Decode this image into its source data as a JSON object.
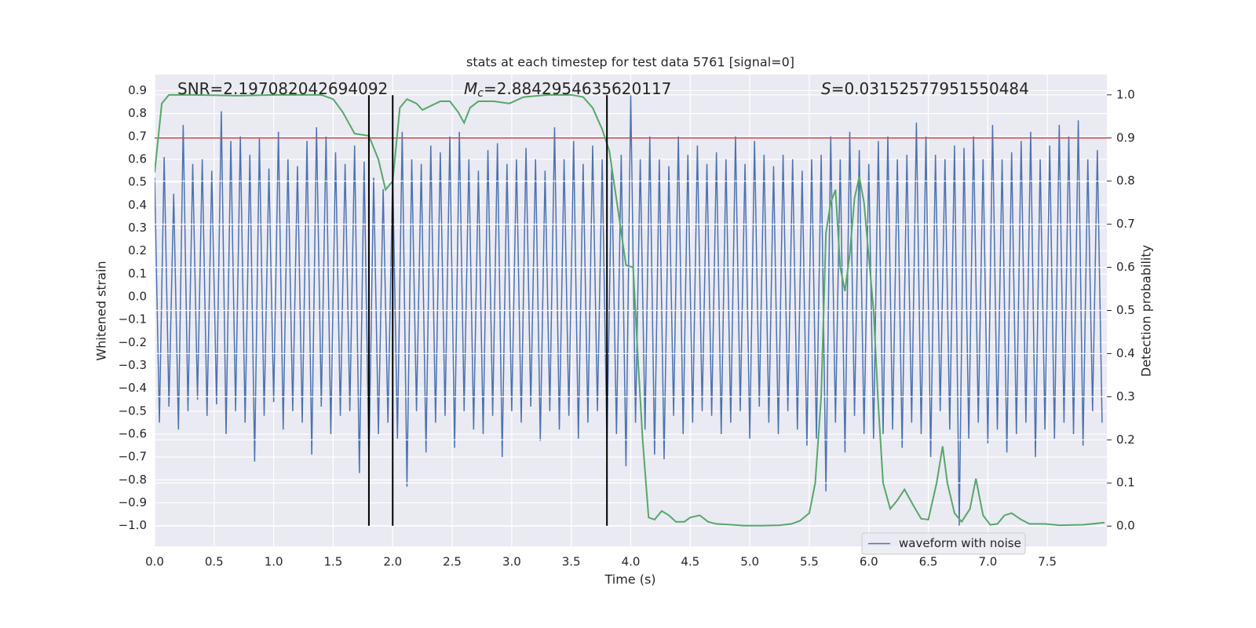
{
  "chart_data": {
    "type": "line",
    "title": "stats at each timestep for test data 5761 [signal=0]",
    "xlabel": "Time (s)",
    "ylabel": "Whitened strain",
    "y2label": "Detection probability",
    "xlim": [
      0,
      8
    ],
    "ylim": [
      -1.09,
      0.97
    ],
    "y2lim": [
      -0.047,
      1.047
    ],
    "xticks": [
      {
        "value": 0,
        "label": "0.0"
      },
      0.5,
      {
        "value": 1,
        "label": "1.0"
      },
      1.5,
      {
        "value": 2,
        "label": "2.0"
      },
      2.5,
      {
        "value": 3,
        "label": "3.0"
      },
      3.5,
      {
        "value": 4,
        "label": "4.0"
      },
      4.5,
      {
        "value": 5,
        "label": "5.0"
      },
      5.5,
      {
        "value": 6,
        "label": "6.0"
      },
      6.5,
      {
        "value": 7,
        "label": "7.0"
      },
      7.5
    ],
    "yticks": [
      0.9,
      0.8,
      0.7,
      0.6,
      0.5,
      0.4,
      0.3,
      0.2,
      0.1,
      {
        "value": 0,
        "label": "0.0"
      },
      {
        "value": -0.1,
        "label": "−0.1"
      },
      {
        "value": -0.2,
        "label": "−0.2"
      },
      {
        "value": -0.3,
        "label": "−0.3"
      },
      {
        "value": -0.4,
        "label": "−0.4"
      },
      {
        "value": -0.5,
        "label": "−0.5"
      },
      {
        "value": -0.6,
        "label": "−0.6"
      },
      {
        "value": -0.7,
        "label": "−0.7"
      },
      {
        "value": -0.8,
        "label": "−0.8"
      },
      {
        "value": -0.9,
        "label": "−0.9"
      },
      {
        "value": -1,
        "label": "−1.0"
      }
    ],
    "y2ticks": [
      {
        "value": 0,
        "label": "0.0"
      },
      0.1,
      0.2,
      0.3,
      0.4,
      0.5,
      0.6,
      0.7,
      0.8,
      0.9,
      {
        "value": 1,
        "label": "1.0"
      }
    ],
    "grid": true,
    "legend": "lower right",
    "annotations": [
      {
        "text": "SNR=2.197082042694092"
      },
      {
        "symbol": "M",
        "subscript": "c",
        "text": "=2.8842954635620117"
      },
      {
        "symbol": "S",
        "text": "=0.03152577951550484"
      }
    ],
    "hlines": [
      {
        "value": 0.9,
        "axis": "y2",
        "color": "#c44e52"
      }
    ],
    "vlines": {
      "values": [
        1.8,
        2.0,
        3.8
      ],
      "ymin": -1.0,
      "ymax": 0.88,
      "color": "#000000"
    },
    "series": [
      {
        "name": "waveform with noise",
        "color": "#4c72b0",
        "x": [
          0,
          0.04,
          0.08,
          0.12,
          0.16,
          0.2,
          0.24,
          0.28,
          0.32,
          0.36,
          0.4,
          0.44,
          0.48,
          0.52,
          0.56,
          0.6,
          0.64,
          0.68,
          0.72,
          0.76,
          0.8,
          0.84,
          0.88,
          0.92,
          0.96,
          1,
          1.04,
          1.08,
          1.12,
          1.16,
          1.2,
          1.24,
          1.28,
          1.32,
          1.36,
          1.4,
          1.44,
          1.48,
          1.52,
          1.56,
          1.6,
          1.64,
          1.68,
          1.72,
          1.76,
          1.8,
          1.84,
          1.88,
          1.92,
          1.96,
          2,
          2.04,
          2.08,
          2.12,
          2.16,
          2.2,
          2.24,
          2.28,
          2.32,
          2.36,
          2.4,
          2.44,
          2.48,
          2.52,
          2.56,
          2.6,
          2.64,
          2.68,
          2.72,
          2.76,
          2.8,
          2.84,
          2.88,
          2.92,
          2.96,
          3,
          3.04,
          3.08,
          3.12,
          3.16,
          3.2,
          3.24,
          3.28,
          3.32,
          3.36,
          3.4,
          3.44,
          3.48,
          3.52,
          3.56,
          3.6,
          3.64,
          3.68,
          3.72,
          3.76,
          3.8,
          3.84,
          3.88,
          3.92,
          3.96,
          4,
          4.04,
          4.08,
          4.12,
          4.16,
          4.2,
          4.24,
          4.28,
          4.32,
          4.36,
          4.4,
          4.44,
          4.48,
          4.52,
          4.56,
          4.6,
          4.64,
          4.68,
          4.72,
          4.76,
          4.8,
          4.84,
          4.88,
          4.92,
          4.96,
          5,
          5.04,
          5.08,
          5.12,
          5.16,
          5.2,
          5.24,
          5.28,
          5.32,
          5.36,
          5.4,
          5.44,
          5.48,
          5.52,
          5.56,
          5.6,
          5.64,
          5.68,
          5.72,
          5.76,
          5.8,
          5.84,
          5.88,
          5.92,
          5.96,
          6,
          6.04,
          6.08,
          6.12,
          6.16,
          6.2,
          6.24,
          6.28,
          6.32,
          6.36,
          6.4,
          6.44,
          6.48,
          6.52,
          6.56,
          6.6,
          6.64,
          6.68,
          6.72,
          6.76,
          6.8,
          6.84,
          6.88,
          6.92,
          6.96,
          7,
          7.04,
          7.08,
          7.12,
          7.16,
          7.2,
          7.24,
          7.28,
          7.32,
          7.36,
          7.4,
          7.44,
          7.48,
          7.52,
          7.56,
          7.6,
          7.64,
          7.68,
          7.72,
          7.76,
          7.8,
          7.84,
          7.88,
          7.92,
          7.96
        ],
        "values": [
          0.52,
          -0.55,
          0.61,
          -0.48,
          0.45,
          -0.58,
          0.75,
          -0.5,
          0.58,
          -0.45,
          0.6,
          -0.52,
          0.55,
          -0.47,
          0.81,
          -0.6,
          0.68,
          -0.5,
          0.7,
          -0.55,
          0.62,
          -0.72,
          0.69,
          -0.52,
          0.56,
          -0.46,
          0.72,
          -0.58,
          0.6,
          -0.5,
          0.57,
          -0.55,
          0.68,
          -0.69,
          0.74,
          -0.48,
          0.7,
          -0.6,
          0.63,
          -0.52,
          0.58,
          -0.5,
          0.66,
          -0.77,
          0.59,
          -0.73,
          0.52,
          -0.6,
          0.47,
          -0.55,
          0.54,
          -0.62,
          0.72,
          -0.83,
          0.6,
          -0.5,
          0.58,
          -0.68,
          0.66,
          -0.55,
          0.63,
          -0.52,
          0.7,
          -0.66,
          0.72,
          -0.5,
          0.6,
          -0.58,
          0.55,
          -0.6,
          0.64,
          -0.52,
          0.67,
          -0.7,
          0.58,
          -0.5,
          0.6,
          -0.55,
          0.65,
          -0.48,
          0.6,
          -0.63,
          0.55,
          -0.5,
          0.74,
          -0.58,
          0.6,
          -0.52,
          0.68,
          -0.62,
          0.58,
          -0.55,
          0.66,
          -0.5,
          0.6,
          -0.65,
          0.57,
          -0.6,
          0.62,
          -0.74,
          0.88,
          -0.55,
          0.6,
          -0.58,
          0.7,
          -0.69,
          0.6,
          -0.71,
          0.57,
          -0.52,
          0.7,
          -0.6,
          0.62,
          -0.55,
          0.66,
          -0.5,
          0.58,
          -0.52,
          0.63,
          -0.6,
          0.6,
          -0.55,
          0.7,
          -0.5,
          0.58,
          -0.62,
          0.68,
          -0.48,
          0.62,
          -0.55,
          0.57,
          -0.6,
          0.62,
          -0.5,
          0.6,
          -0.58,
          0.55,
          -0.65,
          0.6,
          -0.62,
          0.62,
          -0.85,
          0.7,
          -0.55,
          0.6,
          -0.68,
          0.72,
          -0.52,
          0.64,
          -0.6,
          0.58,
          -0.62,
          0.68,
          -0.6,
          0.7,
          -0.58,
          0.6,
          -0.66,
          0.62,
          -0.55,
          0.76,
          -0.6,
          0.7,
          -0.7,
          0.62,
          -0.5,
          0.6,
          -0.58,
          0.66,
          -1.0,
          0.65,
          -0.62,
          0.7,
          -0.55,
          0.6,
          -0.64,
          0.75,
          -0.58,
          0.6,
          -0.68,
          0.63,
          -0.6,
          0.68,
          -0.55,
          0.72,
          -0.7,
          0.6,
          -0.58,
          0.66,
          -0.62,
          0.75,
          -0.55,
          0.7,
          -0.6,
          0.77,
          -0.65,
          0.6,
          -0.5,
          0.64,
          -0.55
        ]
      },
      {
        "color": "#55a868",
        "axis": "y2",
        "x": [
          0,
          0.06,
          0.12,
          0.3,
          0.7,
          1.0,
          1.4,
          1.5,
          1.58,
          1.68,
          1.8,
          1.88,
          1.94,
          2.0,
          2.06,
          2.12,
          2.2,
          2.25,
          2.4,
          2.48,
          2.55,
          2.6,
          2.65,
          2.72,
          2.85,
          2.98,
          3.1,
          3.3,
          3.5,
          3.6,
          3.68,
          3.76,
          3.82,
          3.9,
          3.96,
          4.02,
          4.06,
          4.1,
          4.15,
          4.2,
          4.26,
          4.32,
          4.38,
          4.45,
          4.5,
          4.58,
          4.65,
          4.72,
          4.85,
          4.95,
          5.1,
          5.25,
          5.35,
          5.42,
          5.5,
          5.55,
          5.6,
          5.64,
          5.68,
          5.72,
          5.76,
          5.8,
          5.84,
          5.88,
          5.92,
          5.96,
          6.04,
          6.08,
          6.12,
          6.18,
          6.24,
          6.3,
          6.37,
          6.44,
          6.5,
          6.57,
          6.62,
          6.66,
          6.72,
          6.78,
          6.85,
          6.9,
          6.96,
          7.02,
          7.08,
          7.14,
          7.2,
          7.28,
          7.35,
          7.48,
          7.6,
          7.8,
          7.98
        ],
        "values": [
          0.82,
          0.98,
          1.0,
          1.0,
          0.998,
          1.0,
          1.0,
          0.99,
          0.96,
          0.91,
          0.905,
          0.85,
          0.78,
          0.8,
          0.97,
          0.99,
          0.98,
          0.965,
          0.985,
          0.985,
          0.96,
          0.935,
          0.97,
          0.985,
          0.985,
          0.98,
          0.995,
          1.0,
          1.0,
          0.995,
          0.97,
          0.92,
          0.87,
          0.72,
          0.605,
          0.6,
          0.39,
          0.2,
          0.02,
          0.015,
          0.035,
          0.025,
          0.01,
          0.01,
          0.02,
          0.025,
          0.01,
          0.005,
          0.003,
          0.001,
          0.001,
          0.002,
          0.005,
          0.012,
          0.03,
          0.1,
          0.3,
          0.68,
          0.75,
          0.78,
          0.6,
          0.545,
          0.63,
          0.76,
          0.81,
          0.75,
          0.5,
          0.28,
          0.1,
          0.04,
          0.06,
          0.085,
          0.05,
          0.017,
          0.015,
          0.1,
          0.185,
          0.1,
          0.03,
          0.01,
          0.04,
          0.11,
          0.025,
          0.003,
          0.005,
          0.025,
          0.03,
          0.015,
          0.005,
          0.005,
          0.002,
          0.003,
          0.008
        ]
      }
    ]
  }
}
